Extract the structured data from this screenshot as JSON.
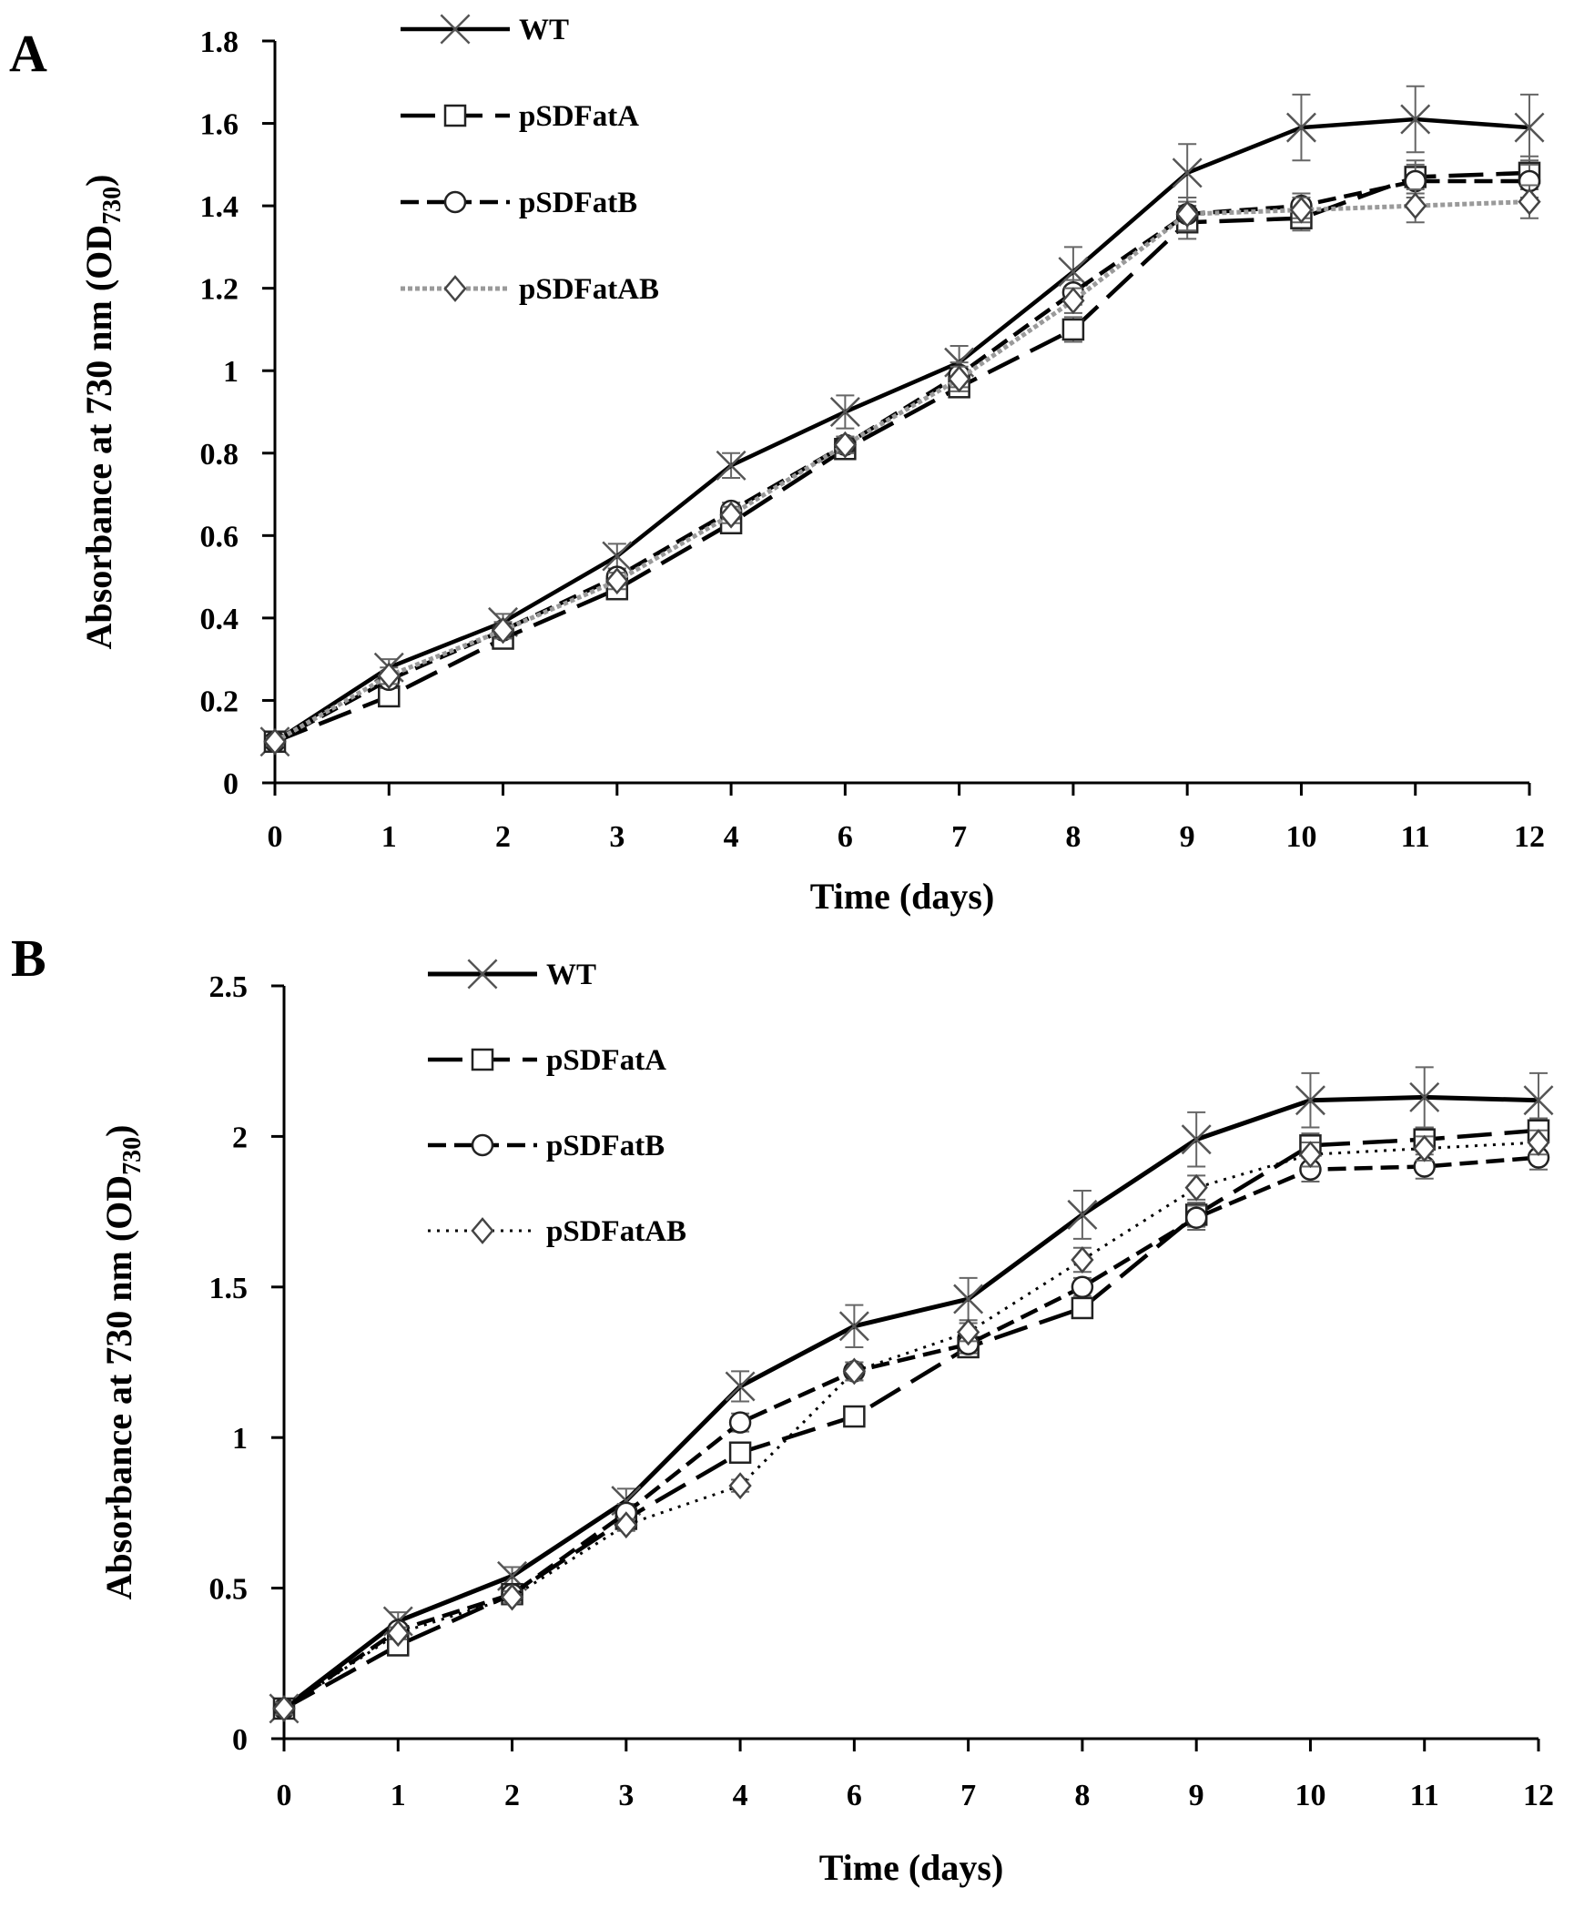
{
  "chart_data": [
    {
      "panel_label": "A",
      "type": "line",
      "xlabel": "Time (days)",
      "ylabel": "Absorbance at 730 nm (OD",
      "ylabel_sub": "730",
      "ylabel_close": ")",
      "categories": [
        "0",
        "1",
        "2",
        "3",
        "4",
        "6",
        "7",
        "8",
        "9",
        "10",
        "11",
        "12"
      ],
      "ylim": [
        0,
        1.8
      ],
      "yticks": [
        0,
        0.2,
        0.4,
        0.6,
        0.8,
        1,
        1.2,
        1.4,
        1.6,
        1.8
      ],
      "ytick_labels": [
        "0",
        "0.2",
        "0.4",
        "0.6",
        "0.8",
        "1",
        "1.2",
        "1.4",
        "1.6",
        "1.8"
      ],
      "legend_position": "top-left",
      "series": [
        {
          "name": "WT",
          "marker": "x",
          "line": "solid",
          "values": [
            0.1,
            0.28,
            0.39,
            0.55,
            0.77,
            0.9,
            1.02,
            1.24,
            1.48,
            1.59,
            1.61,
            1.59
          ],
          "errors": [
            0.02,
            0.02,
            0.02,
            0.03,
            0.03,
            0.04,
            0.04,
            0.06,
            0.07,
            0.08,
            0.08,
            0.08
          ]
        },
        {
          "name": "pSDFatA",
          "marker": "square",
          "line": "longdash",
          "values": [
            0.1,
            0.21,
            0.35,
            0.47,
            0.63,
            0.81,
            0.96,
            1.1,
            1.36,
            1.37,
            1.47,
            1.48
          ],
          "errors": [
            0.01,
            0.02,
            0.02,
            0.02,
            0.02,
            0.02,
            0.02,
            0.03,
            0.04,
            0.03,
            0.04,
            0.04
          ]
        },
        {
          "name": "pSDFatB",
          "marker": "circle",
          "line": "dash",
          "values": [
            0.1,
            0.25,
            0.37,
            0.5,
            0.66,
            0.82,
            0.99,
            1.19,
            1.38,
            1.4,
            1.46,
            1.46
          ],
          "errors": [
            0.01,
            0.02,
            0.02,
            0.02,
            0.02,
            0.02,
            0.03,
            0.03,
            0.04,
            0.03,
            0.04,
            0.04
          ]
        },
        {
          "name": "pSDFatAB",
          "marker": "diamond",
          "line": "dotted-gray",
          "values": [
            0.1,
            0.26,
            0.37,
            0.49,
            0.65,
            0.82,
            0.98,
            1.17,
            1.38,
            1.39,
            1.4,
            1.41
          ],
          "errors": [
            0.01,
            0.02,
            0.02,
            0.02,
            0.02,
            0.02,
            0.03,
            0.03,
            0.04,
            0.03,
            0.04,
            0.04
          ]
        }
      ]
    },
    {
      "panel_label": "B",
      "type": "line",
      "xlabel": "Time (days)",
      "ylabel": "Absorbance at 730 nm (OD",
      "ylabel_sub": "730",
      "ylabel_close": ")",
      "categories": [
        "0",
        "1",
        "2",
        "3",
        "4",
        "6",
        "7",
        "8",
        "9",
        "10",
        "11",
        "12"
      ],
      "ylim": [
        0,
        2.5
      ],
      "yticks": [
        0,
        0.5,
        1,
        1.5,
        2,
        2.5
      ],
      "ytick_labels": [
        "0",
        "0.5",
        "1",
        "1.5",
        "2",
        "2.5"
      ],
      "legend_position": "top-left",
      "series": [
        {
          "name": "WT",
          "marker": "x",
          "line": "solid",
          "values": [
            0.1,
            0.39,
            0.54,
            0.79,
            1.17,
            1.37,
            1.46,
            1.74,
            1.99,
            2.12,
            2.13,
            2.12
          ],
          "errors": [
            0.02,
            0.03,
            0.03,
            0.04,
            0.05,
            0.07,
            0.07,
            0.08,
            0.09,
            0.09,
            0.1,
            0.09
          ]
        },
        {
          "name": "pSDFatA",
          "marker": "square",
          "line": "longdash",
          "values": [
            0.1,
            0.31,
            0.48,
            0.73,
            0.95,
            1.07,
            1.3,
            1.43,
            1.74,
            1.97,
            1.99,
            2.02
          ],
          "errors": [
            0.02,
            0.02,
            0.02,
            0.03,
            0.03,
            0.03,
            0.03,
            0.03,
            0.04,
            0.04,
            0.04,
            0.04
          ]
        },
        {
          "name": "pSDFatB",
          "marker": "circle",
          "line": "dash",
          "values": [
            0.1,
            0.36,
            0.48,
            0.75,
            1.05,
            1.22,
            1.31,
            1.5,
            1.73,
            1.89,
            1.9,
            1.93
          ],
          "errors": [
            0.02,
            0.02,
            0.02,
            0.03,
            0.03,
            0.03,
            0.03,
            0.03,
            0.04,
            0.04,
            0.04,
            0.04
          ]
        },
        {
          "name": "pSDFatAB",
          "marker": "diamond",
          "line": "dotted",
          "values": [
            0.1,
            0.35,
            0.47,
            0.71,
            0.84,
            1.22,
            1.35,
            1.59,
            1.83,
            1.94,
            1.96,
            1.98
          ],
          "errors": [
            0.02,
            0.02,
            0.02,
            0.02,
            0.02,
            0.03,
            0.03,
            0.04,
            0.04,
            0.04,
            0.04,
            0.04
          ]
        }
      ]
    }
  ]
}
